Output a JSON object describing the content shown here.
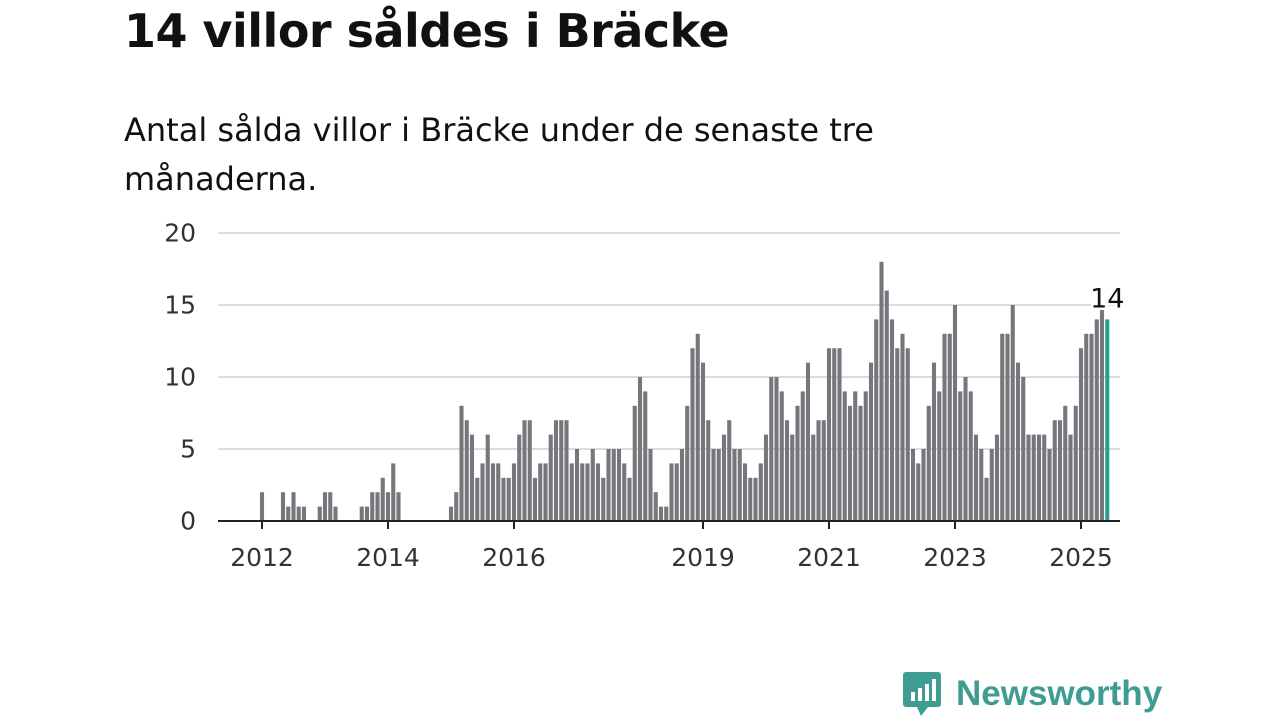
{
  "headline": "14 villor såldes i Bräcke",
  "subheadline": "Antal sålda villor i Bräcke under de senaste tre månaderna.",
  "brand": {
    "name": "Newsworthy",
    "color": "#3f9c92",
    "icon": "newsworthy-logo-icon"
  },
  "colors": {
    "bar": "#77767d",
    "highlight": "#2a9d8f",
    "grid": "#dcdcdc",
    "axis": "#222222"
  },
  "chart_data": {
    "type": "bar",
    "x_start": "2012-01",
    "x_end": "2025-01",
    "y_ticks": [
      0,
      5,
      10,
      15,
      20
    ],
    "x_ticks": [
      "2012",
      "2014",
      "2016",
      "2019",
      "2021",
      "2023",
      "2025"
    ],
    "ylim": [
      0,
      20
    ],
    "grid": true,
    "values": [
      2,
      0,
      0,
      0,
      2,
      1,
      2,
      1,
      1,
      0,
      0,
      1,
      2,
      2,
      1,
      0,
      0,
      0,
      0,
      1,
      1,
      2,
      2,
      3,
      2,
      4,
      2,
      0,
      0,
      0,
      0,
      0,
      0,
      0,
      0,
      0,
      1,
      2,
      8,
      7,
      6,
      3,
      4,
      6,
      4,
      4,
      3,
      3,
      4,
      6,
      7,
      7,
      3,
      4,
      4,
      6,
      7,
      7,
      7,
      4,
      5,
      4,
      4,
      5,
      4,
      3,
      5,
      5,
      5,
      4,
      3,
      8,
      10,
      9,
      5,
      2,
      1,
      1,
      4,
      4,
      5,
      8,
      12,
      13,
      11,
      7,
      5,
      5,
      6,
      7,
      5,
      5,
      4,
      3,
      3,
      4,
      6,
      10,
      10,
      9,
      7,
      6,
      8,
      9,
      11,
      6,
      7,
      7,
      12,
      12,
      12,
      9,
      8,
      9,
      8,
      9,
      11,
      14,
      18,
      16,
      14,
      12,
      13,
      12,
      5,
      4,
      5,
      8,
      11,
      9,
      13,
      13,
      15,
      9,
      10,
      9,
      6,
      5,
      3,
      5,
      6,
      13,
      13,
      15,
      11,
      10,
      6,
      6,
      6,
      6,
      5,
      7,
      7,
      8,
      6,
      8,
      12,
      13,
      13,
      14,
      15,
      14
    ],
    "highlight_last": true,
    "annotation": {
      "label": "14"
    }
  }
}
